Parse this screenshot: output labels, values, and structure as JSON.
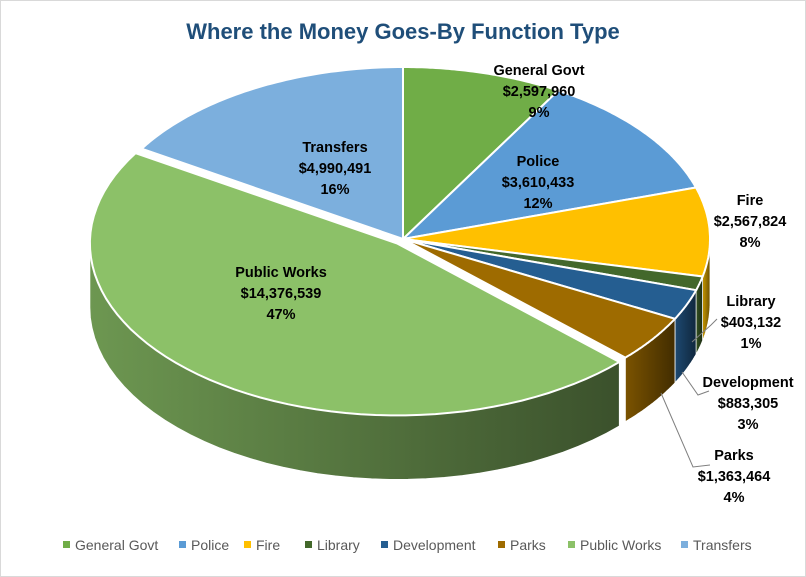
{
  "chart_data": {
    "type": "pie",
    "title": "Where the Money Goes-By Function Type",
    "slices": [
      {
        "name": "General Govt",
        "value": 2597960,
        "value_label": "$2,597,960",
        "percent_label": "9%",
        "color": "#70ad47"
      },
      {
        "name": "Police",
        "value": 3610433,
        "value_label": "$3,610,433",
        "percent_label": "12%",
        "color": "#5b9bd5"
      },
      {
        "name": "Fire",
        "value": 2567824,
        "value_label": "$2,567,824",
        "percent_label": "8%",
        "color": "#ffc000"
      },
      {
        "name": "Library",
        "value": 403132,
        "value_label": "$403,132",
        "percent_label": "1%",
        "color": "#43682b"
      },
      {
        "name": "Development",
        "value": 883305,
        "value_label": "$883,305",
        "percent_label": "3%",
        "color": "#255e91"
      },
      {
        "name": "Parks",
        "value": 1363464,
        "value_label": "$1,363,464",
        "percent_label": "4%",
        "color": "#9e6b00"
      },
      {
        "name": "Public Works",
        "value": 14376539,
        "value_label": "$14,376,539",
        "percent_label": "47%",
        "color": "#8cc168"
      },
      {
        "name": "Transfers",
        "value": 4990491,
        "value_label": "$4,990,491",
        "percent_label": "16%",
        "color": "#7cafdd"
      }
    ],
    "legend_position": "bottom",
    "style": "3d-exploded-pie"
  }
}
